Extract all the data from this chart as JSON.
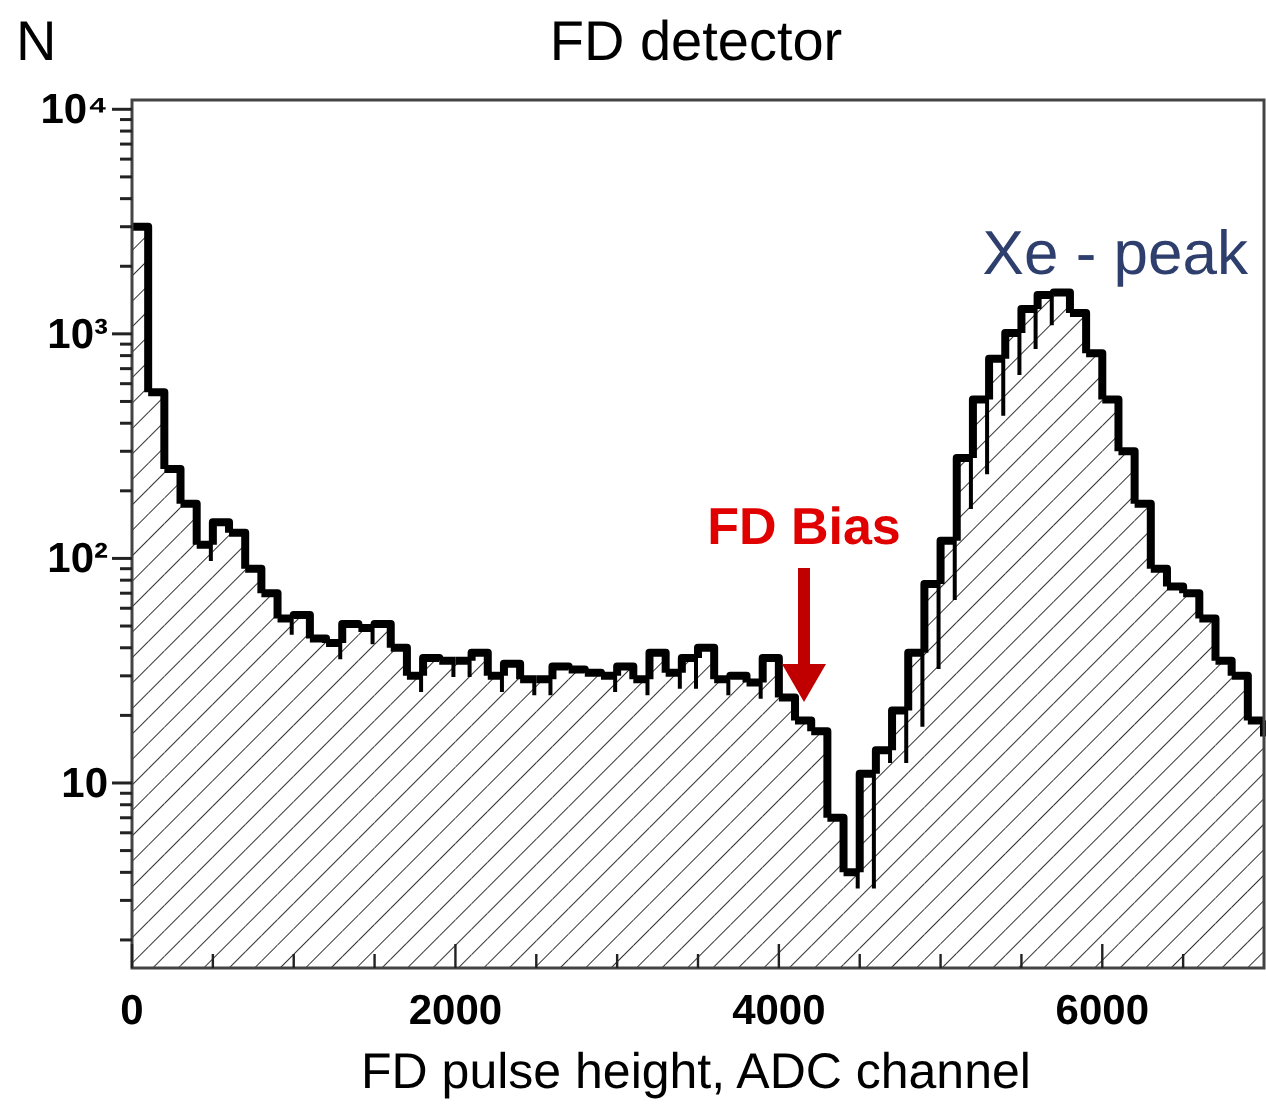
{
  "chart_data": {
    "type": "histogram",
    "title": "FD detector",
    "xlabel": "FD pulse height, ADC channel",
    "ylabel": "N",
    "bins": [
      0,
      100,
      200,
      300,
      400,
      500,
      600,
      700,
      800,
      900,
      1000,
      1100,
      1200,
      1300,
      1400,
      1500,
      1600,
      1700,
      1800,
      1900,
      2000,
      2100,
      2200,
      2300,
      2400,
      2500,
      2600,
      2700,
      2800,
      2900,
      3000,
      3100,
      3200,
      3300,
      3400,
      3500,
      3600,
      3700,
      3800,
      3900,
      4000,
      4100,
      4200,
      4300,
      4400,
      4500,
      4600,
      4700,
      4800,
      4900,
      5000,
      5100,
      5200,
      5300,
      5400,
      5500,
      5600,
      5700,
      5800,
      5900,
      6000,
      6100,
      6200,
      6300,
      6400,
      6500,
      6600,
      6700,
      6800,
      6900,
      7000
    ],
    "values": [
      3000,
      550,
      250,
      175,
      115,
      145,
      130,
      90,
      70,
      54,
      56,
      44,
      42,
      51,
      49,
      51,
      40,
      30,
      36,
      35,
      35,
      38,
      30,
      34,
      29,
      29,
      33,
      32,
      31,
      30,
      33,
      29,
      38,
      31,
      36,
      40,
      29,
      30,
      28,
      36,
      24,
      19,
      17,
      7,
      4,
      11,
      14,
      21,
      38,
      77,
      120,
      280,
      510,
      775,
      1010,
      1290,
      1490,
      1530,
      1240,
      820,
      510,
      300,
      175,
      90,
      75,
      70,
      54,
      35,
      30,
      19
    ],
    "color": "#000000",
    "log": true,
    "xlim": [
      0,
      7000
    ],
    "ylim": [
      1.5,
      11000
    ],
    "xticks": [
      0,
      {
        "value": 500,
        "label": null
      },
      {
        "value": 1000,
        "label": null
      },
      {
        "value": 1500,
        "label": null
      },
      2000,
      {
        "value": 2500,
        "label": null
      },
      {
        "value": 3000,
        "label": null
      },
      {
        "value": 3500,
        "label": null
      },
      4000,
      {
        "value": 4500,
        "label": null
      },
      {
        "value": 5000,
        "label": null
      },
      {
        "value": 5500,
        "label": null
      },
      6000,
      {
        "value": 6500,
        "label": null
      }
    ],
    "yticks": [
      {
        "value": 2,
        "label": null
      },
      {
        "value": 3,
        "label": null
      },
      {
        "value": 4,
        "label": null
      },
      {
        "value": 5,
        "label": null
      },
      {
        "value": 6,
        "label": null
      },
      {
        "value": 7,
        "label": null
      },
      {
        "value": 8,
        "label": null
      },
      {
        "value": 9,
        "label": null
      },
      10,
      {
        "value": 20,
        "label": null
      },
      {
        "value": 30,
        "label": null
      },
      {
        "value": 40,
        "label": null
      },
      {
        "value": 50,
        "label": null
      },
      {
        "value": 60,
        "label": null
      },
      {
        "value": 70,
        "label": null
      },
      {
        "value": 80,
        "label": null
      },
      {
        "value": 90,
        "label": null
      },
      {
        "value": 100,
        "label": "10²"
      },
      {
        "value": 200,
        "label": null
      },
      {
        "value": 300,
        "label": null
      },
      {
        "value": 400,
        "label": null
      },
      {
        "value": 500,
        "label": null
      },
      {
        "value": 600,
        "label": null
      },
      {
        "value": 700,
        "label": null
      },
      {
        "value": 800,
        "label": null
      },
      {
        "value": 900,
        "label": null
      },
      {
        "value": 1000,
        "label": "10³"
      },
      {
        "value": 2000,
        "label": null
      },
      {
        "value": 3000,
        "label": null
      },
      {
        "value": 4000,
        "label": null
      },
      {
        "value": 5000,
        "label": null
      },
      {
        "value": 6000,
        "label": null
      },
      {
        "value": 7000,
        "label": null
      },
      {
        "value": 8000,
        "label": null
      },
      {
        "value": 9000,
        "label": null
      },
      {
        "value": 10000,
        "label": "10⁴"
      }
    ],
    "grid": false,
    "annotations": [
      "Xe - peak",
      "FD Bias"
    ]
  }
}
